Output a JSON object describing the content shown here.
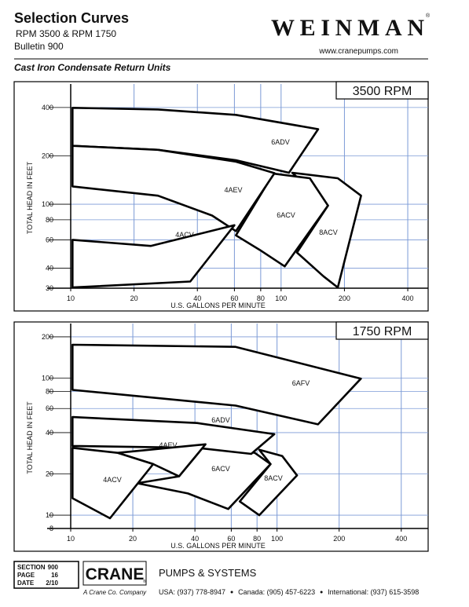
{
  "header": {
    "title": "Selection Curves",
    "subtitle_lines": [
      "RPM 3500 & RPM 1750",
      "Bulletin 900"
    ],
    "logo": "WEINMAN",
    "logo_mark": "®",
    "website": "www.cranepumps.com",
    "section_title": "Cast Iron Condensate Return Units"
  },
  "chart_data": [
    {
      "type": "area",
      "title": "3500 RPM",
      "x_label": "U.S. GALLONS PER MINUTE",
      "y_label": "TOTAL HEAD IN FEET",
      "log_x": true,
      "log_y": true,
      "grid": true,
      "grid_color": "#7b9ad6",
      "xlim": [
        10,
        500
      ],
      "ylim": [
        30,
        560
      ],
      "xticks": [
        10,
        20,
        40,
        60,
        80,
        100,
        200,
        400
      ],
      "yticks": [
        30,
        40,
        60,
        80,
        100,
        200,
        400
      ],
      "series": [
        {
          "name": "6ADV",
          "color": "#000000",
          "x": [
            10.2,
            26,
            61,
            150,
            109,
            61,
            26,
            10.2
          ],
          "values": [
            398,
            389,
            360,
            293,
            157,
            188,
            218,
            231
          ]
        },
        {
          "name": "8ACV",
          "color": "#000000",
          "x": [
            113,
            186,
            240,
            186,
            159,
            119,
            167
          ],
          "values": [
            157,
            145,
            113,
            30.3,
            35.6,
            50,
            98
          ]
        },
        {
          "name": "6ACV",
          "color": "#000000",
          "x": [
            92,
            137,
            167,
            104,
            79,
            61
          ],
          "values": [
            155,
            145,
            98,
            41,
            52,
            64
          ]
        },
        {
          "name": "4AEV",
          "color": "#000000",
          "x": [
            10.2,
            26,
            61,
            93,
            61,
            47,
            26,
            10.2
          ],
          "values": [
            231,
            218,
            184,
            156,
            68,
            85,
            113,
            129
          ]
        },
        {
          "name": "4ACV",
          "color": "#000000",
          "x": [
            10.2,
            24,
            60,
            37,
            10.2
          ],
          "values": [
            60,
            55,
            74,
            33,
            30.3
          ]
        }
      ]
    },
    {
      "type": "area",
      "title": "1750 RPM",
      "x_label": "U.S. GALLONS PER MINUTE",
      "y_label": "TOTAL HEAD IN FEET",
      "log_x": true,
      "log_y": true,
      "grid": true,
      "grid_color": "#7b9ad6",
      "xlim": [
        10,
        540
      ],
      "ylim": [
        8,
        250
      ],
      "xticks": [
        10,
        20,
        40,
        60,
        80,
        100,
        200,
        400
      ],
      "yticks": [
        8,
        10,
        20,
        40,
        60,
        80,
        100,
        200
      ],
      "series": [
        {
          "name": "6AFV",
          "color": "#000000",
          "x": [
            10.2,
            63,
            255,
            158,
            63,
            10.2
          ],
          "values": [
            175,
            169,
            99,
            46,
            63,
            82
          ]
        },
        {
          "name": "8ACV",
          "color": "#000000",
          "x": [
            82,
            106,
            125,
            82,
            66,
            93
          ],
          "values": [
            30,
            27,
            19.5,
            10,
            12.6,
            23.6
          ]
        },
        {
          "name": "6ACV",
          "color": "#000000",
          "x": [
            45,
            78,
            93,
            58,
            37,
            21,
            33.5
          ],
          "values": [
            32.9,
            28.5,
            23.6,
            11.1,
            14.4,
            17.1,
            19.2
          ]
        },
        {
          "name": "6ADV",
          "color": "#000000",
          "x": [
            10.2,
            41,
            97,
            75,
            41,
            10.2
          ],
          "values": [
            52,
            47,
            39,
            28,
            31,
            32
          ]
        },
        {
          "name": "4AEV",
          "color": "#000000",
          "x": [
            16.9,
            45,
            33.5,
            25.1
          ],
          "values": [
            28.5,
            32.9,
            19.2,
            23.6
          ]
        },
        {
          "name": "4ACV",
          "color": "#000000",
          "x": [
            10.2,
            16.9,
            25.1,
            15.5,
            10.2
          ],
          "values": [
            31,
            28.5,
            23.6,
            9.5,
            13.3
          ]
        }
      ]
    }
  ],
  "footer": {
    "info": [
      [
        "SECTION",
        "900"
      ],
      [
        "PAGE",
        "16"
      ],
      [
        "DATE",
        "2/10"
      ]
    ],
    "brand": "CRANE",
    "brand_mark": "®",
    "tagline": "A Crane Co. Company",
    "division": "PUMPS & SYSTEMS",
    "contacts": [
      "USA: (937) 778-8947",
      "Canada: (905) 457-6223",
      "International: (937) 615-3598"
    ]
  }
}
